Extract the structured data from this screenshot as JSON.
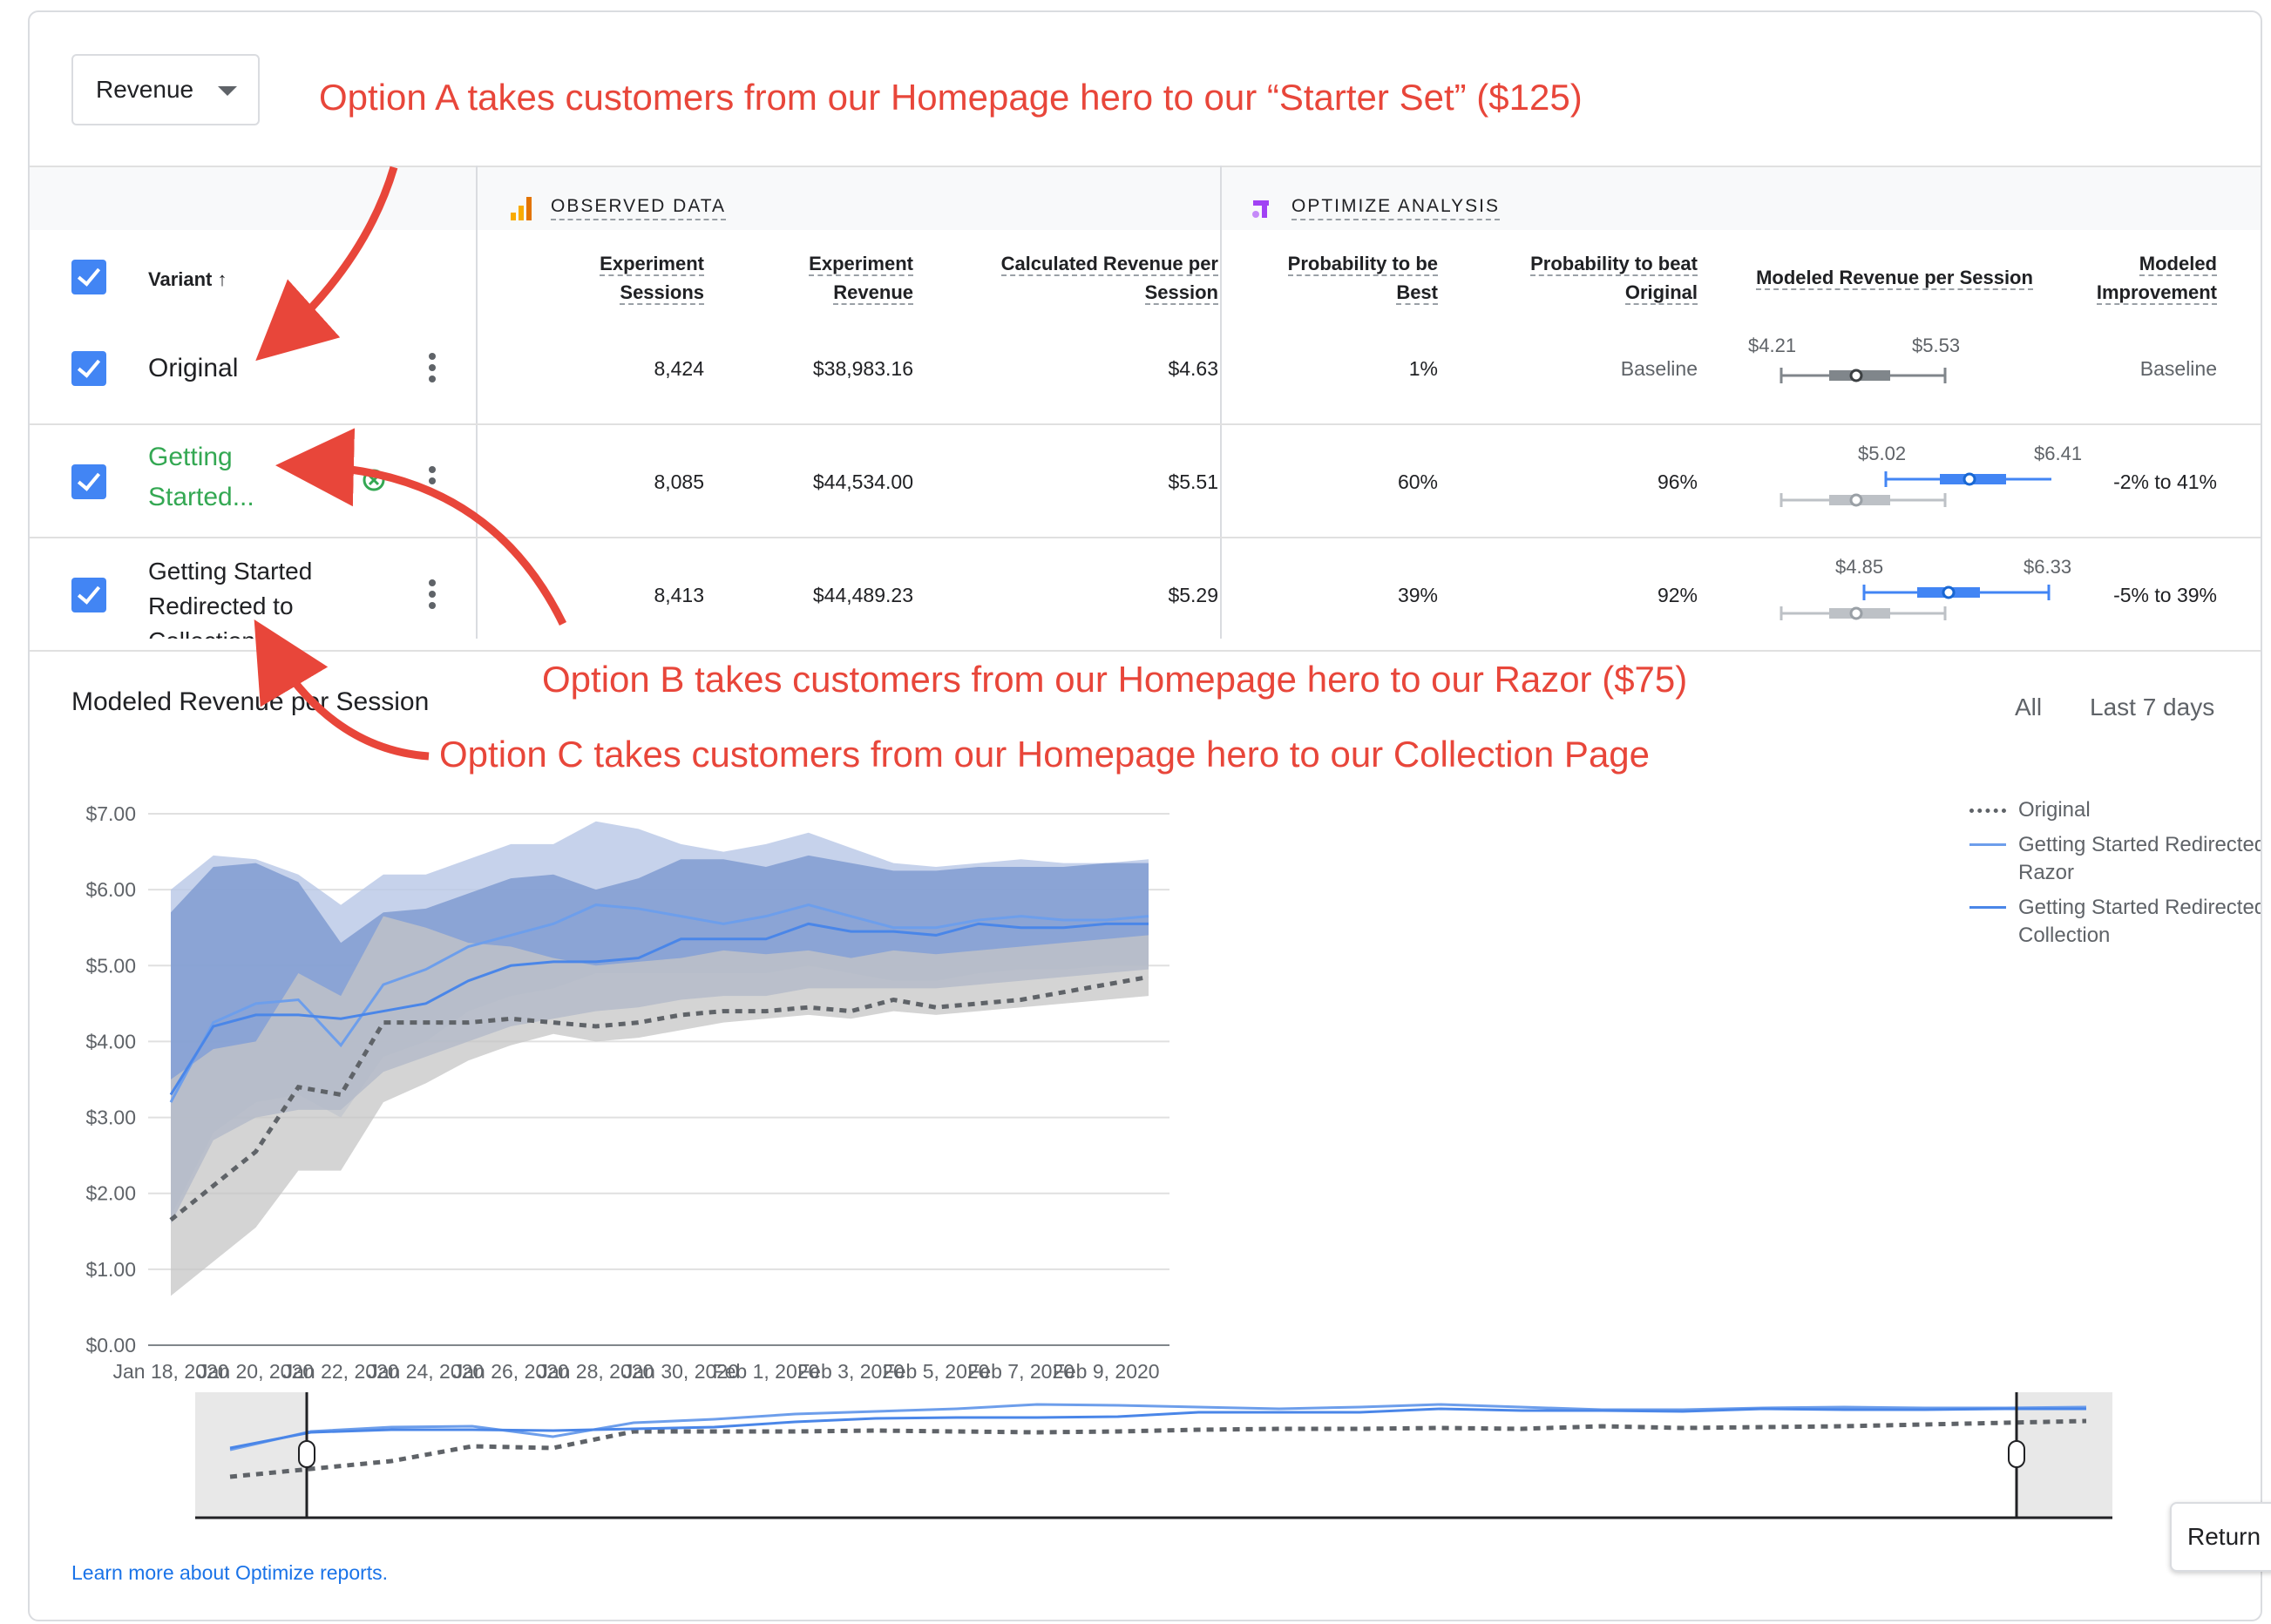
{
  "metric_select": {
    "value": "Revenue"
  },
  "annotations": {
    "option_a": "Option A takes customers from our Homepage hero to our “Starter Set” ($125)",
    "option_b": "Option B takes customers from our Homepage hero to our Razor ($75)",
    "option_c": "Option C takes customers from our Homepage hero to our Collection Page"
  },
  "table": {
    "groups": {
      "observed": "OBSERVED DATA",
      "optimize": "OPTIMIZE ANALYSIS"
    },
    "headers": {
      "variant": "Variant",
      "sessions": [
        "Experiment",
        "Sessions"
      ],
      "revenue": [
        "Experiment",
        "Revenue"
      ],
      "calc_rps": [
        "Calculated Revenue per",
        "Session"
      ],
      "prob_best": [
        "Probability to be",
        "Best"
      ],
      "prob_beat": [
        "Probability to beat",
        "Original"
      ],
      "modeled_rps": "Modeled Revenue per Session",
      "improvement": [
        "Modeled",
        "Improvement"
      ]
    },
    "rows": [
      {
        "name_lines": [
          "Original",
          ""
        ],
        "sessions": "8,424",
        "revenue": "$38,983.16",
        "calc_rps": "$4.63",
        "prob_best": "1%",
        "prob_beat": "Baseline",
        "ci_low": "$4.21",
        "ci_high": "$5.53",
        "improvement": "Baseline"
      },
      {
        "name_lines": [
          "Getting",
          "Started..."
        ],
        "sessions": "8,085",
        "revenue": "$44,534.00",
        "calc_rps": "$5.51",
        "prob_best": "60%",
        "prob_beat": "96%",
        "ci_low": "$5.02",
        "ci_high": "$6.41",
        "improvement": "-2% to 41%"
      },
      {
        "name_lines": [
          "Getting Started",
          "Redirected to",
          "Collection"
        ],
        "sessions": "8,413",
        "revenue": "$44,489.23",
        "calc_rps": "$5.29",
        "prob_best": "39%",
        "prob_beat": "92%",
        "ci_low": "$4.85",
        "ci_high": "$6.33",
        "improvement": "-5% to 39%"
      }
    ]
  },
  "chart_section": {
    "title": "Modeled Revenue per Session",
    "range_all": "All",
    "range_last7": "Last 7 days"
  },
  "legend": [
    {
      "label": "Original",
      "color": "#5f6368",
      "style": "dashed"
    },
    {
      "label": "Getting Started Redirected to Razor",
      "color": "#6d9eeb",
      "style": "solid"
    },
    {
      "label": "Getting Started Redirected to Collection",
      "color": "#4a86e8",
      "style": "solid"
    }
  ],
  "chart_data": {
    "type": "line",
    "ylabel": "",
    "xlabel": "",
    "ylim": [
      0,
      7
    ],
    "y_ticks": [
      "$0.00",
      "$1.00",
      "$2.00",
      "$3.00",
      "$4.00",
      "$5.00",
      "$6.00",
      "$7.00"
    ],
    "x": [
      "Jan 18, 2020",
      "Jan 19, 2020",
      "Jan 20, 2020",
      "Jan 21, 2020",
      "Jan 22, 2020",
      "Jan 23, 2020",
      "Jan 24, 2020",
      "Jan 25, 2020",
      "Jan 26, 2020",
      "Jan 27, 2020",
      "Jan 28, 2020",
      "Jan 29, 2020",
      "Jan 30, 2020",
      "Jan 31, 2020",
      "Feb 1, 2020",
      "Feb 2, 2020",
      "Feb 3, 2020",
      "Feb 4, 2020",
      "Feb 5, 2020",
      "Feb 6, 2020",
      "Feb 7, 2020",
      "Feb 8, 2020",
      "Feb 9, 2020",
      "Feb 10, 2020"
    ],
    "x_tick_labels": [
      "Jan 18, 2020",
      "Jan 20, 2020",
      "Jan 22, 2020",
      "Jan 24, 2020",
      "Jan 26, 2020",
      "Jan 28, 2020",
      "Jan 30, 2020",
      "Feb 1, 2020",
      "Feb 3, 2020",
      "Feb 5, 2020",
      "Feb 7, 2020",
      "Feb 9, 2020"
    ],
    "series": [
      {
        "name": "Original",
        "color": "#5f6368",
        "dashed": true,
        "values": [
          1.65,
          2.1,
          2.55,
          3.4,
          3.3,
          4.25,
          4.25,
          4.25,
          4.3,
          4.25,
          4.2,
          4.25,
          4.35,
          4.4,
          4.4,
          4.45,
          4.4,
          4.55,
          4.45,
          4.5,
          4.55,
          4.65,
          4.75,
          4.85
        ],
        "band_low": [
          0.65,
          1.1,
          1.55,
          2.3,
          2.3,
          3.2,
          3.45,
          3.75,
          3.95,
          4.1,
          4.0,
          4.05,
          4.15,
          4.25,
          4.3,
          4.35,
          4.3,
          4.4,
          4.35,
          4.4,
          4.45,
          4.5,
          4.55,
          4.6
        ],
        "band_high": [
          3.5,
          3.9,
          4.0,
          4.9,
          4.6,
          5.65,
          5.5,
          5.3,
          5.25,
          5.1,
          5.0,
          5.05,
          5.1,
          5.2,
          5.15,
          5.2,
          5.1,
          5.2,
          5.15,
          5.2,
          5.25,
          5.3,
          5.35,
          5.4
        ],
        "band_color": "#c6c6c6"
      },
      {
        "name": "Getting Started Redirected to Razor",
        "color": "#6d9eeb",
        "dashed": false,
        "values": [
          3.2,
          4.25,
          4.5,
          4.55,
          3.95,
          4.75,
          4.95,
          5.25,
          5.4,
          5.55,
          5.8,
          5.75,
          5.65,
          5.55,
          5.65,
          5.8,
          5.65,
          5.5,
          5.5,
          5.6,
          5.65,
          5.6,
          5.6,
          5.65
        ],
        "band_low": [
          1.7,
          2.8,
          3.2,
          3.3,
          3.0,
          3.8,
          4.0,
          4.4,
          4.6,
          4.7,
          4.9,
          4.9,
          4.9,
          4.9,
          4.9,
          5.0,
          4.9,
          4.8,
          4.8,
          4.9,
          4.95,
          4.95,
          5.0,
          5.0
        ],
        "band_high": [
          6.0,
          6.45,
          6.4,
          6.2,
          5.8,
          6.2,
          6.2,
          6.4,
          6.6,
          6.6,
          6.9,
          6.8,
          6.6,
          6.5,
          6.6,
          6.75,
          6.55,
          6.35,
          6.3,
          6.35,
          6.4,
          6.35,
          6.35,
          6.4
        ],
        "band_color": "#b8c7e6"
      },
      {
        "name": "Getting Started Redirected to Collection",
        "color": "#4a86e8",
        "dashed": false,
        "values": [
          3.3,
          4.2,
          4.35,
          4.35,
          4.3,
          4.4,
          4.5,
          4.8,
          5.0,
          5.05,
          5.05,
          5.1,
          5.35,
          5.35,
          5.35,
          5.55,
          5.45,
          5.45,
          5.4,
          5.55,
          5.5,
          5.5,
          5.55,
          5.55
        ],
        "band_low": [
          1.6,
          2.7,
          3.0,
          3.1,
          3.1,
          3.6,
          3.8,
          4.0,
          4.2,
          4.3,
          4.4,
          4.45,
          4.55,
          4.6,
          4.6,
          4.7,
          4.7,
          4.7,
          4.7,
          4.75,
          4.8,
          4.85,
          4.9,
          4.95
        ],
        "band_high": [
          5.7,
          6.3,
          6.35,
          6.1,
          5.3,
          5.7,
          5.75,
          5.95,
          6.15,
          6.2,
          6.0,
          6.15,
          6.4,
          6.4,
          6.3,
          6.45,
          6.35,
          6.25,
          6.25,
          6.3,
          6.3,
          6.3,
          6.35,
          6.35
        ],
        "band_color": "#7c98cf"
      }
    ]
  }
}
